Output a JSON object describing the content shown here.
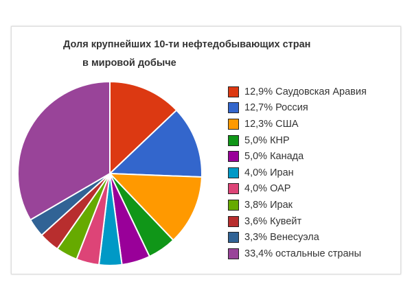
{
  "chart_data": {
    "type": "pie",
    "title": [
      "Доля крупнейших 10-ти нефтедобывающих стран",
      "в мировой добыче"
    ],
    "legend_position": "right",
    "slices": [
      {
        "label": "12,9% Саудовская Аравия",
        "value": 12.9,
        "color": "#dc3912"
      },
      {
        "label": "12,7% Россия",
        "value": 12.7,
        "color": "#3366cc"
      },
      {
        "label": "12,3% США",
        "value": 12.3,
        "color": "#ff9900"
      },
      {
        "label": "5,0% КНР",
        "value": 5.0,
        "color": "#109618"
      },
      {
        "label": "5,0% Канада",
        "value": 5.0,
        "color": "#990099"
      },
      {
        "label": "4,0% Иран",
        "value": 4.0,
        "color": "#0099c6"
      },
      {
        "label": "4,0% ОАР",
        "value": 4.0,
        "color": "#dd4477"
      },
      {
        "label": "3,8% Ирак",
        "value": 3.8,
        "color": "#66aa00"
      },
      {
        "label": "3,6% Кувейт",
        "value": 3.6,
        "color": "#b82e2e"
      },
      {
        "label": "3,3% Венесуэла",
        "value": 3.3,
        "color": "#316395"
      },
      {
        "label": "33,4% остальные страны",
        "value": 33.4,
        "color": "#994499"
      }
    ]
  }
}
